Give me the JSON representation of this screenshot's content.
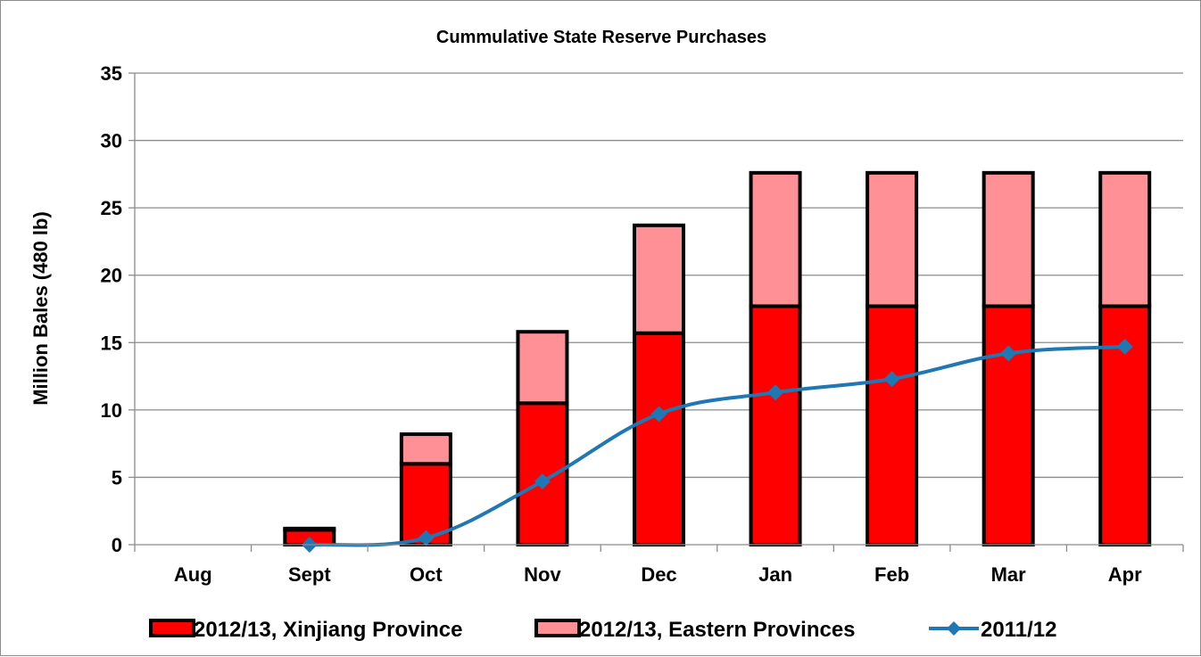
{
  "chart_data": {
    "type": "bar",
    "stacked": true,
    "title": "Cummulative State Reserve Purchases",
    "xlabel": "",
    "ylabel": "Million Bales (480 lb)",
    "ylim": [
      0,
      35
    ],
    "yticks": [
      0,
      5,
      10,
      15,
      20,
      25,
      30,
      35
    ],
    "grid": true,
    "legend_position": "bottom",
    "categories": [
      "Aug",
      "Sept",
      "Oct",
      "Nov",
      "Dec",
      "Jan",
      "Feb",
      "Mar",
      "Apr"
    ],
    "series": [
      {
        "name": "2012/13, Xinjiang Province",
        "kind": "bar",
        "color": "#ff0000",
        "values": [
          0,
          1.1,
          6.0,
          10.5,
          15.7,
          17.7,
          17.7,
          17.7,
          17.7
        ]
      },
      {
        "name": "2012/13, Eastern Provinces",
        "kind": "bar",
        "color": "#ff9196",
        "values": [
          0,
          0.1,
          2.2,
          5.3,
          8.0,
          9.9,
          9.9,
          9.9,
          9.9
        ]
      },
      {
        "name": "2011/12",
        "kind": "line",
        "color": "#1f77b4",
        "marker": "diamond",
        "values": [
          null,
          0.0,
          0.5,
          4.7,
          9.7,
          11.3,
          12.3,
          14.2,
          14.7
        ]
      }
    ]
  }
}
